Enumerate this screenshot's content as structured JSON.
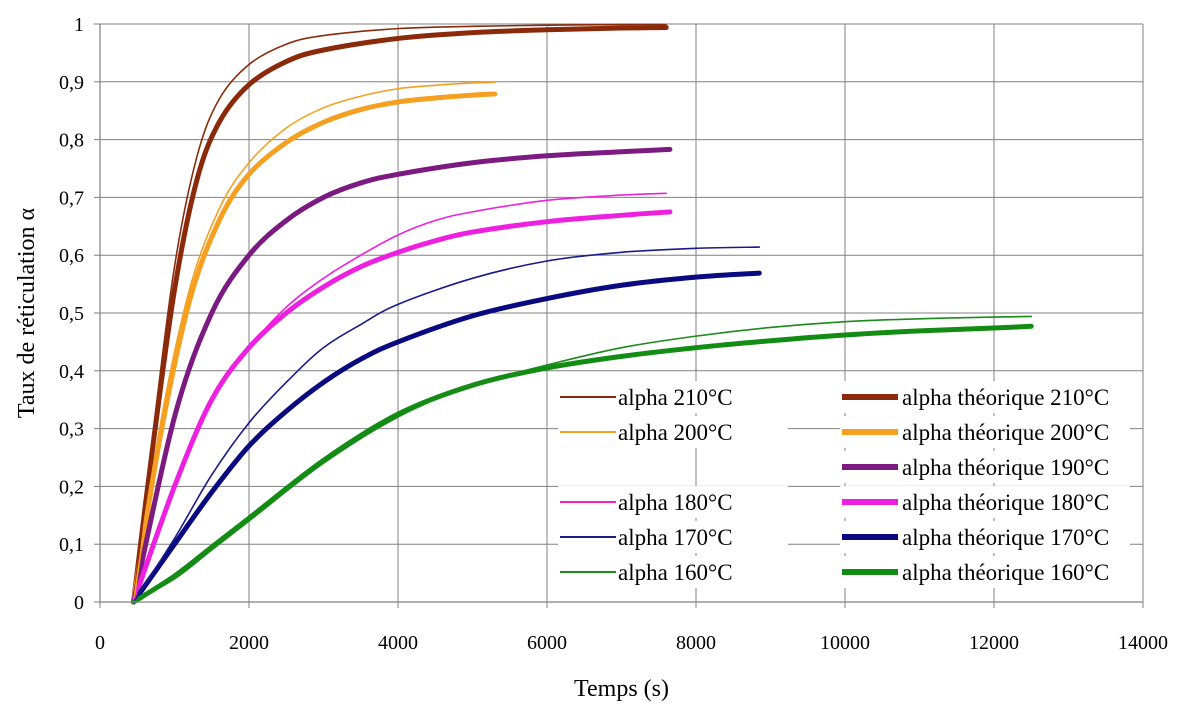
{
  "chart_data": {
    "type": "line",
    "title": "",
    "xlabel": "Temps (s)",
    "ylabel": "Taux de réticulation α",
    "xlim": [
      0,
      14000
    ],
    "ylim": [
      0,
      1
    ],
    "x_ticks": [
      0,
      2000,
      4000,
      6000,
      8000,
      10000,
      12000,
      14000
    ],
    "x_tick_labels": [
      "0",
      "2000",
      "4000",
      "6000",
      "8000",
      "10000",
      "12000",
      "14000"
    ],
    "y_ticks": [
      0,
      0.1,
      0.2,
      0.3,
      0.4,
      0.5,
      0.6,
      0.7,
      0.8,
      0.9,
      1
    ],
    "y_tick_labels": [
      "0",
      "0,1",
      "0,2",
      "0,3",
      "0,4",
      "0,5",
      "0,6",
      "0,7",
      "0,8",
      "0,9",
      "1"
    ],
    "grid": true,
    "legend_position": "bottom-right",
    "series": [
      {
        "name": "alpha 210°C",
        "kind": "experimental",
        "color": "#8B2A0A",
        "x": [
          450,
          700,
          1000,
          1300,
          1600,
          2000,
          2500,
          3000,
          4000,
          5000,
          6000,
          7000,
          7600
        ],
        "y": [
          0,
          0.28,
          0.58,
          0.77,
          0.87,
          0.93,
          0.965,
          0.98,
          0.992,
          0.996,
          0.998,
          0.999,
          0.999
        ]
      },
      {
        "name": "alpha théorique 210°C",
        "kind": "theoretical",
        "color": "#8B2A0A",
        "x": [
          450,
          700,
          1000,
          1300,
          1600,
          2000,
          2500,
          3000,
          4000,
          5000,
          6000,
          7000,
          7600
        ],
        "y": [
          0,
          0.26,
          0.54,
          0.73,
          0.83,
          0.895,
          0.935,
          0.955,
          0.975,
          0.985,
          0.99,
          0.993,
          0.994
        ]
      },
      {
        "name": "alpha 200°C",
        "kind": "experimental",
        "color": "#F5A020",
        "x": [
          450,
          800,
          1200,
          1600,
          2000,
          2500,
          3000,
          3500,
          4000,
          4500,
          5000,
          5300
        ],
        "y": [
          0,
          0.3,
          0.54,
          0.68,
          0.76,
          0.82,
          0.855,
          0.875,
          0.888,
          0.894,
          0.898,
          0.899
        ]
      },
      {
        "name": "alpha théorique 200°C",
        "kind": "theoretical",
        "color": "#F5A020",
        "x": [
          450,
          800,
          1200,
          1600,
          2000,
          2500,
          3000,
          3500,
          4000,
          4500,
          5000,
          5300
        ],
        "y": [
          0,
          0.28,
          0.52,
          0.66,
          0.74,
          0.795,
          0.83,
          0.852,
          0.865,
          0.872,
          0.877,
          0.879
        ]
      },
      {
        "name": "alpha théorique 190°C",
        "kind": "theoretical",
        "color": "#7B1A80",
        "x": [
          450,
          1000,
          1500,
          2000,
          2500,
          3000,
          3500,
          4000,
          5000,
          6000,
          7000,
          7650
        ],
        "y": [
          0,
          0.32,
          0.5,
          0.6,
          0.66,
          0.7,
          0.725,
          0.74,
          0.76,
          0.772,
          0.779,
          0.783
        ]
      },
      {
        "name": "alpha 180°C",
        "kind": "experimental",
        "color": "#EE20E0",
        "x": [
          450,
          1000,
          1500,
          2000,
          2500,
          3000,
          3500,
          4000,
          4500,
          5000,
          6000,
          7000,
          7600
        ],
        "y": [
          0,
          0.2,
          0.35,
          0.44,
          0.51,
          0.56,
          0.6,
          0.635,
          0.66,
          0.675,
          0.695,
          0.704,
          0.707
        ]
      },
      {
        "name": "alpha théorique 180°C",
        "kind": "theoretical",
        "color": "#EE20E0",
        "x": [
          450,
          1000,
          1500,
          2000,
          2500,
          3000,
          3500,
          4000,
          4500,
          5000,
          6000,
          7000,
          7650
        ],
        "y": [
          0,
          0.2,
          0.35,
          0.44,
          0.5,
          0.545,
          0.58,
          0.605,
          0.625,
          0.64,
          0.658,
          0.669,
          0.675
        ]
      },
      {
        "name": "alpha 170°C",
        "kind": "experimental",
        "color": "#1A1A8C",
        "x": [
          450,
          1000,
          1500,
          2000,
          2500,
          3000,
          3500,
          4000,
          5000,
          6000,
          7000,
          8000,
          8850
        ],
        "y": [
          0,
          0.11,
          0.22,
          0.31,
          0.38,
          0.44,
          0.48,
          0.515,
          0.56,
          0.59,
          0.605,
          0.612,
          0.614
        ]
      },
      {
        "name": "alpha théorique 170°C",
        "kind": "theoretical",
        "color": "#0A0A80",
        "x": [
          450,
          1000,
          1500,
          2000,
          2500,
          3000,
          3500,
          4000,
          5000,
          6000,
          7000,
          8000,
          8850
        ],
        "y": [
          0,
          0.1,
          0.19,
          0.27,
          0.33,
          0.38,
          0.42,
          0.45,
          0.495,
          0.525,
          0.548,
          0.562,
          0.569
        ]
      },
      {
        "name": "alpha 160°C",
        "kind": "experimental",
        "color": "#1A8A1A",
        "x": [
          450,
          1000,
          1500,
          2000,
          3000,
          4000,
          5000,
          6000,
          7000,
          8000,
          9000,
          10000,
          11000,
          12000,
          12500
        ],
        "y": [
          0,
          0.04,
          0.09,
          0.14,
          0.24,
          0.32,
          0.375,
          0.41,
          0.44,
          0.46,
          0.475,
          0.485,
          0.49,
          0.493,
          0.494
        ]
      },
      {
        "name": "alpha théorique 160°C",
        "kind": "theoretical",
        "color": "#138C13",
        "x": [
          450,
          1000,
          1500,
          2000,
          3000,
          4000,
          5000,
          6000,
          7000,
          8000,
          9000,
          10000,
          11000,
          12000,
          12500
        ],
        "y": [
          0,
          0.045,
          0.095,
          0.145,
          0.245,
          0.325,
          0.375,
          0.405,
          0.425,
          0.44,
          0.452,
          0.462,
          0.469,
          0.474,
          0.477
        ]
      }
    ],
    "legend": {
      "left_column": [
        "alpha 210°C",
        "alpha 200°C",
        "",
        "alpha 180°C",
        "alpha 170°C",
        "alpha 160°C"
      ],
      "right_column": [
        "alpha théorique 210°C",
        "alpha théorique 200°C",
        "alpha théorique 190°C",
        "alpha théorique 180°C",
        "alpha théorique 170°C",
        "alpha théorique 160°C"
      ]
    }
  }
}
